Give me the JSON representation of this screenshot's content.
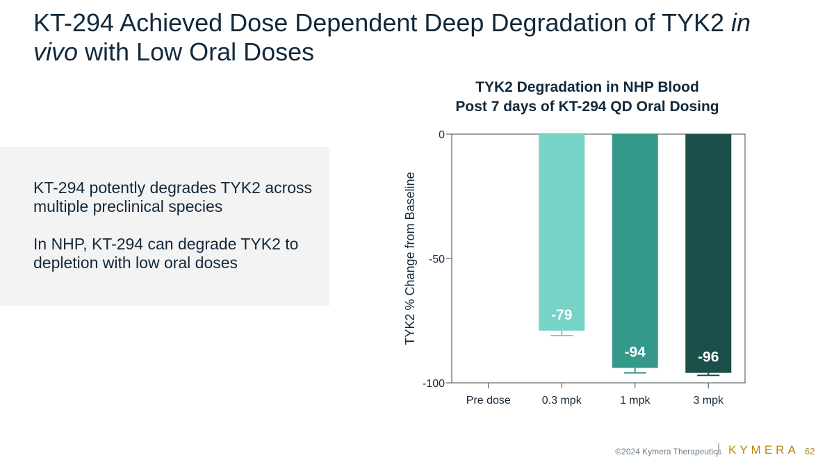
{
  "slide": {
    "title_main": "KT-294 Achieved Dose Dependent Deep Degradation of TYK2 ",
    "title_italic_1": "in",
    "title_italic_2": "vivo",
    "title_end": " with Low Oral Doses"
  },
  "panel": {
    "para1": "KT-294 potently degrades TYK2 across multiple preclinical species",
    "para2": "In NHP, KT-294 can degrade TYK2 to depletion with low oral doses"
  },
  "chart_data": {
    "type": "bar",
    "title_line1": "TYK2 Degradation in NHP Blood",
    "title_line2": "Post 7 days of KT-294 QD Oral Dosing",
    "ylabel": "TYK2 % Change from Baseline",
    "xlabel": "",
    "categories": [
      "Pre dose",
      "0.3 mpk",
      "1 mpk",
      "3 mpk"
    ],
    "values": [
      0,
      -79,
      -94,
      -96
    ],
    "error_bottom": [
      0,
      -81,
      -96,
      -97
    ],
    "data_labels": [
      "",
      "-79",
      "-94",
      "-96"
    ],
    "bar_colors": [
      "#76d3c5",
      "#76d3c5",
      "#35998a",
      "#1b4f4a"
    ],
    "label_colors": [
      "#ffffff",
      "#ffffff",
      "#ffffff",
      "#ffffff"
    ],
    "ylim": [
      -100,
      0
    ],
    "yticks": [
      0,
      -50,
      -100
    ],
    "ytick_labels": [
      "0",
      "-50",
      "-100"
    ]
  },
  "footer": {
    "copyright": "©2024 Kymera Therapeutics",
    "logo_text": "KYMERA",
    "page_number": "62"
  }
}
